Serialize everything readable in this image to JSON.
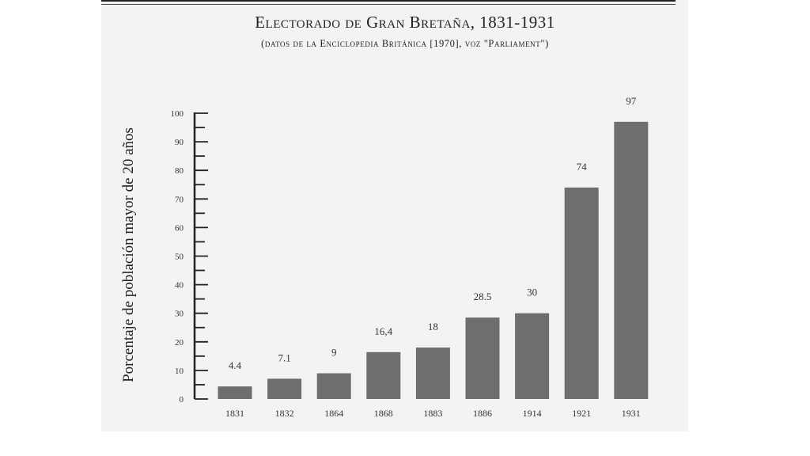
{
  "chart_data": {
    "type": "bar",
    "title": "Electorado de Gran Bretaña, 1831-1931",
    "subtitle": "(datos de la Enciclopedia Británica [1970], voz \"Parliament\")",
    "ylabel": "Porcentaje de población mayor de 20 años",
    "xlabel": "",
    "categories": [
      "1831",
      "1832",
      "1864",
      "1868",
      "1883",
      "1886",
      "1914",
      "1921",
      "1931"
    ],
    "values": [
      4.4,
      7.1,
      9,
      16.4,
      18,
      28.5,
      30,
      74,
      97
    ],
    "value_labels": [
      "4.4",
      "7.1",
      "9",
      "16,4",
      "18",
      "28.5",
      "30",
      "74",
      "97"
    ],
    "ylim": [
      0,
      100
    ],
    "yticks": [
      0,
      10,
      20,
      30,
      40,
      50,
      60,
      70,
      80,
      90,
      100
    ],
    "grid": false,
    "bar_color": "#6e6e6e"
  }
}
